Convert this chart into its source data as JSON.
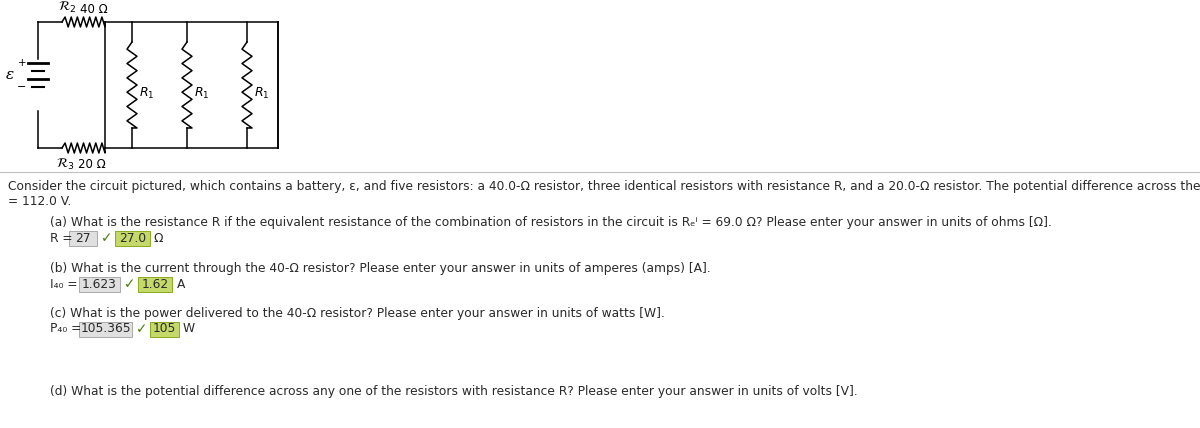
{
  "fig_width": 12.0,
  "fig_height": 4.28,
  "bg_color": "#ffffff",
  "paragraph_line1": "Consider the circuit pictured, which contains a battery, ε, and five resistors: a 40.0-Ω resistor, three identical resistors with resistance R, and a 20.0-Ω resistor. The potential difference across the terminals of the battery is ε",
  "paragraph_line2": "= 112.0 V.",
  "q_a_label": "(a) What is the resistance R if the equivalent resistance of the combination of resistors in the circuit is Rₑⁱ = 69.0 Ω? Please enter your answer in units of ohms [Ω].",
  "q_b_label": "(b) What is the current through the 40-Ω resistor? Please enter your answer in units of amperes (amps) [A].",
  "q_c_label": "(c) What is the power delivered to the 40-Ω resistor? Please enter your answer in units of watts [W].",
  "q_d_label": "(d) What is the potential difference across any one of the resistors with resistance R? Please enter your answer in units of volts [V].",
  "answers": [
    {
      "label": "R = ",
      "box1": "27",
      "box2": "27.0",
      "unit": "Ω"
    },
    {
      "label": "I₄₀ = ",
      "box1": "1.623",
      "box2": "1.62",
      "unit": "A"
    },
    {
      "label": "P₄₀ = ",
      "box1": "105.365",
      "box2": "105",
      "unit": "W"
    }
  ],
  "text_color": "#2a2a2a",
  "box_color_gray": "#e0e0e0",
  "box_color_green": "#c5d96a",
  "check_color": "#4a7a10",
  "box_border_gray": "#aaaaaa",
  "box_border_green": "#8aaa22"
}
